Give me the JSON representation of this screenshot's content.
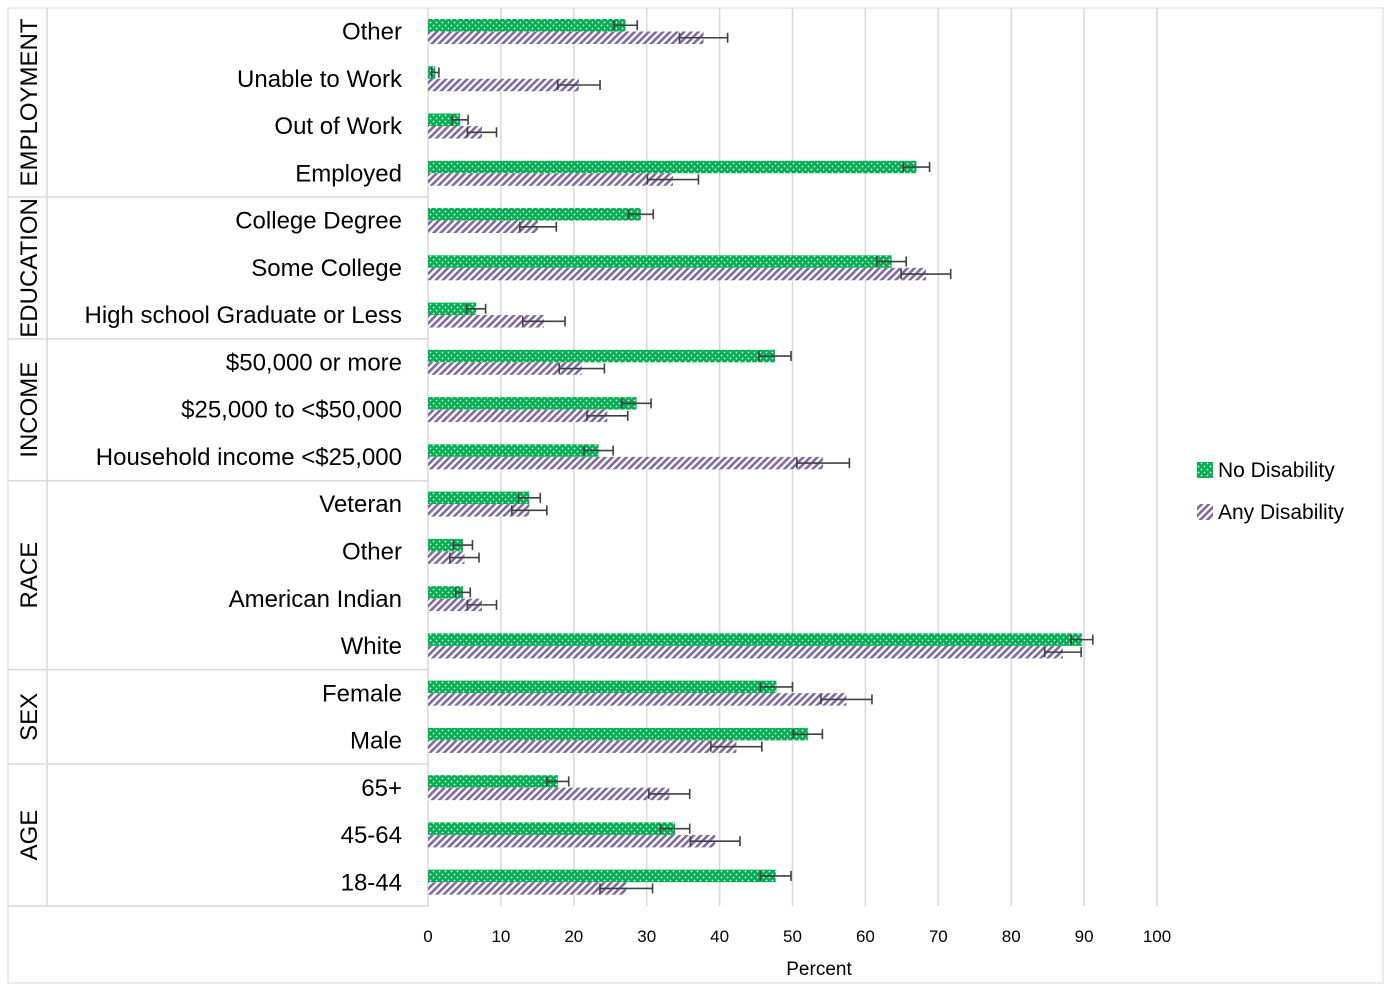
{
  "chart_data": {
    "type": "bar",
    "orientation": "horizontal",
    "xlabel": "Percent",
    "xlim": [
      0,
      100
    ],
    "xticks": [
      0,
      10,
      20,
      30,
      40,
      50,
      60,
      70,
      80,
      90,
      100
    ],
    "grid": true,
    "legend_position": "right",
    "error_bars": true,
    "groups": [
      {
        "label": "EMPLOYMENT",
        "categories": [
          "Other",
          "Unable to Work",
          "Out of Work",
          "Employed"
        ]
      },
      {
        "label": "EDUCATION",
        "categories": [
          "College Degree",
          "Some College",
          "High school Graduate or Less"
        ]
      },
      {
        "label": "INCOME",
        "categories": [
          "$50,000 or more",
          "$25,000 to <$50,000",
          "Household income <$25,000"
        ]
      },
      {
        "label": "RACE",
        "categories": [
          "Veteran",
          "Other",
          "American Indian",
          "White"
        ]
      },
      {
        "label": "SEX",
        "categories": [
          "Female",
          "Male"
        ]
      },
      {
        "label": "AGE",
        "categories": [
          "65+",
          "45-64",
          "18-44"
        ]
      }
    ],
    "categories": [
      "Other",
      "Unable to Work",
      "Out of Work",
      "Employed",
      "College Degree",
      "Some College",
      "High school Graduate or Less",
      "$50,000 or more",
      "$25,000 to <$50,000",
      "Household income <$25,000",
      "Veteran",
      "Other",
      "American Indian",
      "White",
      "Female",
      "Male",
      "65+",
      "45-64",
      "18-44"
    ],
    "series": [
      {
        "name": "No Disability",
        "color": "#00B050",
        "pattern": "dots",
        "values": [
          27.1,
          1.0,
          4.4,
          67.0,
          29.2,
          63.6,
          6.6,
          47.6,
          28.6,
          23.4,
          13.9,
          4.8,
          4.8,
          89.7,
          47.8,
          52.1,
          17.8,
          33.9,
          47.7
        ],
        "errors": [
          1.6,
          0.5,
          1.1,
          1.8,
          1.7,
          2.0,
          1.3,
          2.2,
          2.0,
          2.0,
          1.5,
          1.3,
          1.0,
          1.5,
          2.2,
          2.0,
          1.5,
          2.0,
          2.1
        ]
      },
      {
        "name": "Any Disability",
        "color": "#7F6A9F",
        "pattern": "diagonal-stripes",
        "values": [
          37.8,
          20.7,
          7.4,
          33.6,
          15.1,
          68.3,
          15.9,
          21.1,
          24.6,
          54.2,
          13.9,
          5.0,
          7.4,
          87.1,
          57.4,
          42.3,
          33.1,
          39.4,
          27.2
        ],
        "errors": [
          3.3,
          2.9,
          2.0,
          3.5,
          2.5,
          3.4,
          2.9,
          3.1,
          2.8,
          3.6,
          2.4,
          2.0,
          2.0,
          2.5,
          3.5,
          3.5,
          2.8,
          3.4,
          3.6
        ]
      }
    ]
  }
}
